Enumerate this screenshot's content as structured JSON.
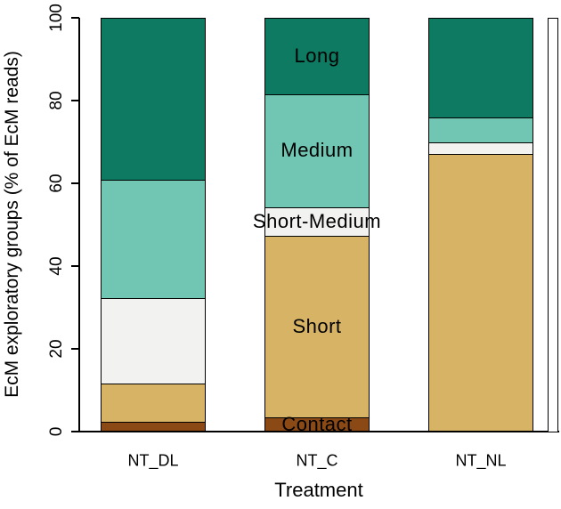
{
  "chart_data": {
    "type": "bar",
    "stacked": true,
    "orientation": "vertical",
    "title": "",
    "xlabel": "Treatment",
    "ylabel": "EcM exploratory groups (% of EcM reads)",
    "ylim": [
      0,
      100
    ],
    "y_ticks": [
      0,
      20,
      40,
      60,
      80,
      100
    ],
    "grid": false,
    "legend_position": "labels-inside-middle-bar",
    "categories": [
      "NT_DL",
      "NT_C",
      "NT_NL"
    ],
    "labels_on_category": "NT_C",
    "series": [
      {
        "name": "Contact",
        "color": "#8b4a15",
        "values": [
          2.3,
          3.4,
          0
        ]
      },
      {
        "name": "Short",
        "color": "#d7b465",
        "values": [
          9.3,
          43.9,
          67.1
        ]
      },
      {
        "name": "Short-Medium",
        "color": "#f2f2f0",
        "values": [
          20.7,
          6.9,
          2.7
        ]
      },
      {
        "name": "Medium",
        "color": "#70c6b3",
        "values": [
          28.6,
          27.3,
          6.2
        ]
      },
      {
        "name": "Long",
        "color": "#0f7a62",
        "values": [
          39.1,
          18.5,
          24.0
        ]
      }
    ],
    "bar_border_color": "#000000",
    "axis_color": "#000000",
    "background": "#ffffff",
    "clipped_partial_bar": {
      "visible": true,
      "fill": "#ffffff"
    }
  }
}
